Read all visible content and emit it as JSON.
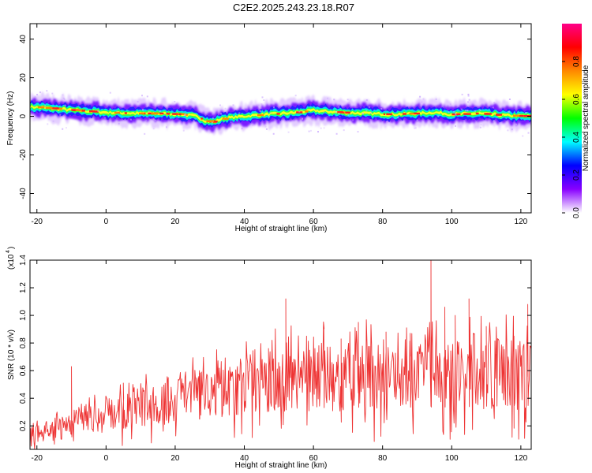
{
  "title": "C2E2.2025.243.23.18.R07",
  "chart_data": [
    {
      "type": "heatmap",
      "xlabel": "Height of straight line (km)",
      "ylabel": "Frequency (Hz)",
      "xlim": [
        -22,
        123
      ],
      "ylim": [
        -50,
        48
      ],
      "xticks": [
        -20,
        0,
        20,
        40,
        60,
        80,
        100,
        120
      ],
      "yticks": [
        -40,
        -20,
        0,
        20,
        40
      ],
      "band_center_hz": [
        [
          -22,
          5
        ],
        [
          -15,
          4
        ],
        [
          -8,
          3
        ],
        [
          0,
          2
        ],
        [
          8,
          1.5
        ],
        [
          15,
          1.5
        ],
        [
          22,
          1
        ],
        [
          26,
          0
        ],
        [
          29,
          -2.5
        ],
        [
          31,
          -3
        ],
        [
          34,
          -1
        ],
        [
          40,
          0
        ],
        [
          46,
          1
        ],
        [
          52,
          1.5
        ],
        [
          60,
          3
        ],
        [
          68,
          2
        ],
        [
          75,
          1.5
        ],
        [
          82,
          1
        ],
        [
          90,
          1.5
        ],
        [
          95,
          2
        ],
        [
          100,
          1
        ],
        [
          108,
          1.5
        ],
        [
          115,
          0.5
        ],
        [
          123,
          0
        ]
      ],
      "colorbar": {
        "label": "Normalized spectral amplitude",
        "ticks": [
          0.0,
          0.2,
          0.4,
          0.6,
          0.8
        ],
        "range": [
          0,
          1
        ],
        "colors": [
          "#ffffff",
          "#8800ff",
          "#0000ff",
          "#00ffff",
          "#00ff00",
          "#ffff00",
          "#ff8800",
          "#ff0000",
          "#ff0088"
        ]
      }
    },
    {
      "type": "line",
      "xlabel": "Height of straight line (km)",
      "ylabel": "SNR (10 * v/v)",
      "multiplier_base": "(x10",
      "multiplier_exp": "4",
      "multiplier_close": ")",
      "xlim": [
        -22,
        123
      ],
      "ylim": [
        0.03,
        1.4
      ],
      "xticks": [
        -20,
        0,
        20,
        40,
        60,
        80,
        100,
        120
      ],
      "yticks": [
        0.2,
        0.4,
        0.6,
        0.8,
        1.0,
        1.2,
        1.4
      ],
      "ytick_labels": [
        "0.2",
        "0.4",
        "0.6",
        "0.8",
        "1.0",
        "1.2",
        "1.4"
      ],
      "line_color": "#ee3333",
      "trend": [
        [
          -22,
          0.14
        ],
        [
          -15,
          0.17
        ],
        [
          -10,
          0.2
        ],
        [
          -5,
          0.25
        ],
        [
          0,
          0.28
        ],
        [
          10,
          0.33
        ],
        [
          20,
          0.38
        ],
        [
          30,
          0.43
        ],
        [
          40,
          0.48
        ],
        [
          50,
          0.52
        ],
        [
          60,
          0.55
        ],
        [
          70,
          0.56
        ],
        [
          80,
          0.55
        ],
        [
          90,
          0.56
        ],
        [
          100,
          0.56
        ],
        [
          110,
          0.57
        ],
        [
          123,
          0.58
        ]
      ],
      "peaks": [
        [
          -10,
          0.63
        ],
        [
          5,
          0.51
        ],
        [
          18,
          0.55
        ],
        [
          27,
          0.6
        ],
        [
          38,
          0.63
        ],
        [
          47,
          0.76
        ],
        [
          52,
          1.12
        ],
        [
          58,
          0.85
        ],
        [
          63,
          0.9
        ],
        [
          68,
          0.83
        ],
        [
          73,
          0.95
        ],
        [
          81,
          0.88
        ],
        [
          88,
          0.87
        ],
        [
          94,
          1.4
        ],
        [
          98,
          1.06
        ],
        [
          101,
          1.0
        ],
        [
          105,
          1.12
        ],
        [
          110,
          0.92
        ],
        [
          113,
          0.72
        ],
        [
          118,
          0.85
        ],
        [
          122,
          1.08
        ]
      ]
    }
  ]
}
